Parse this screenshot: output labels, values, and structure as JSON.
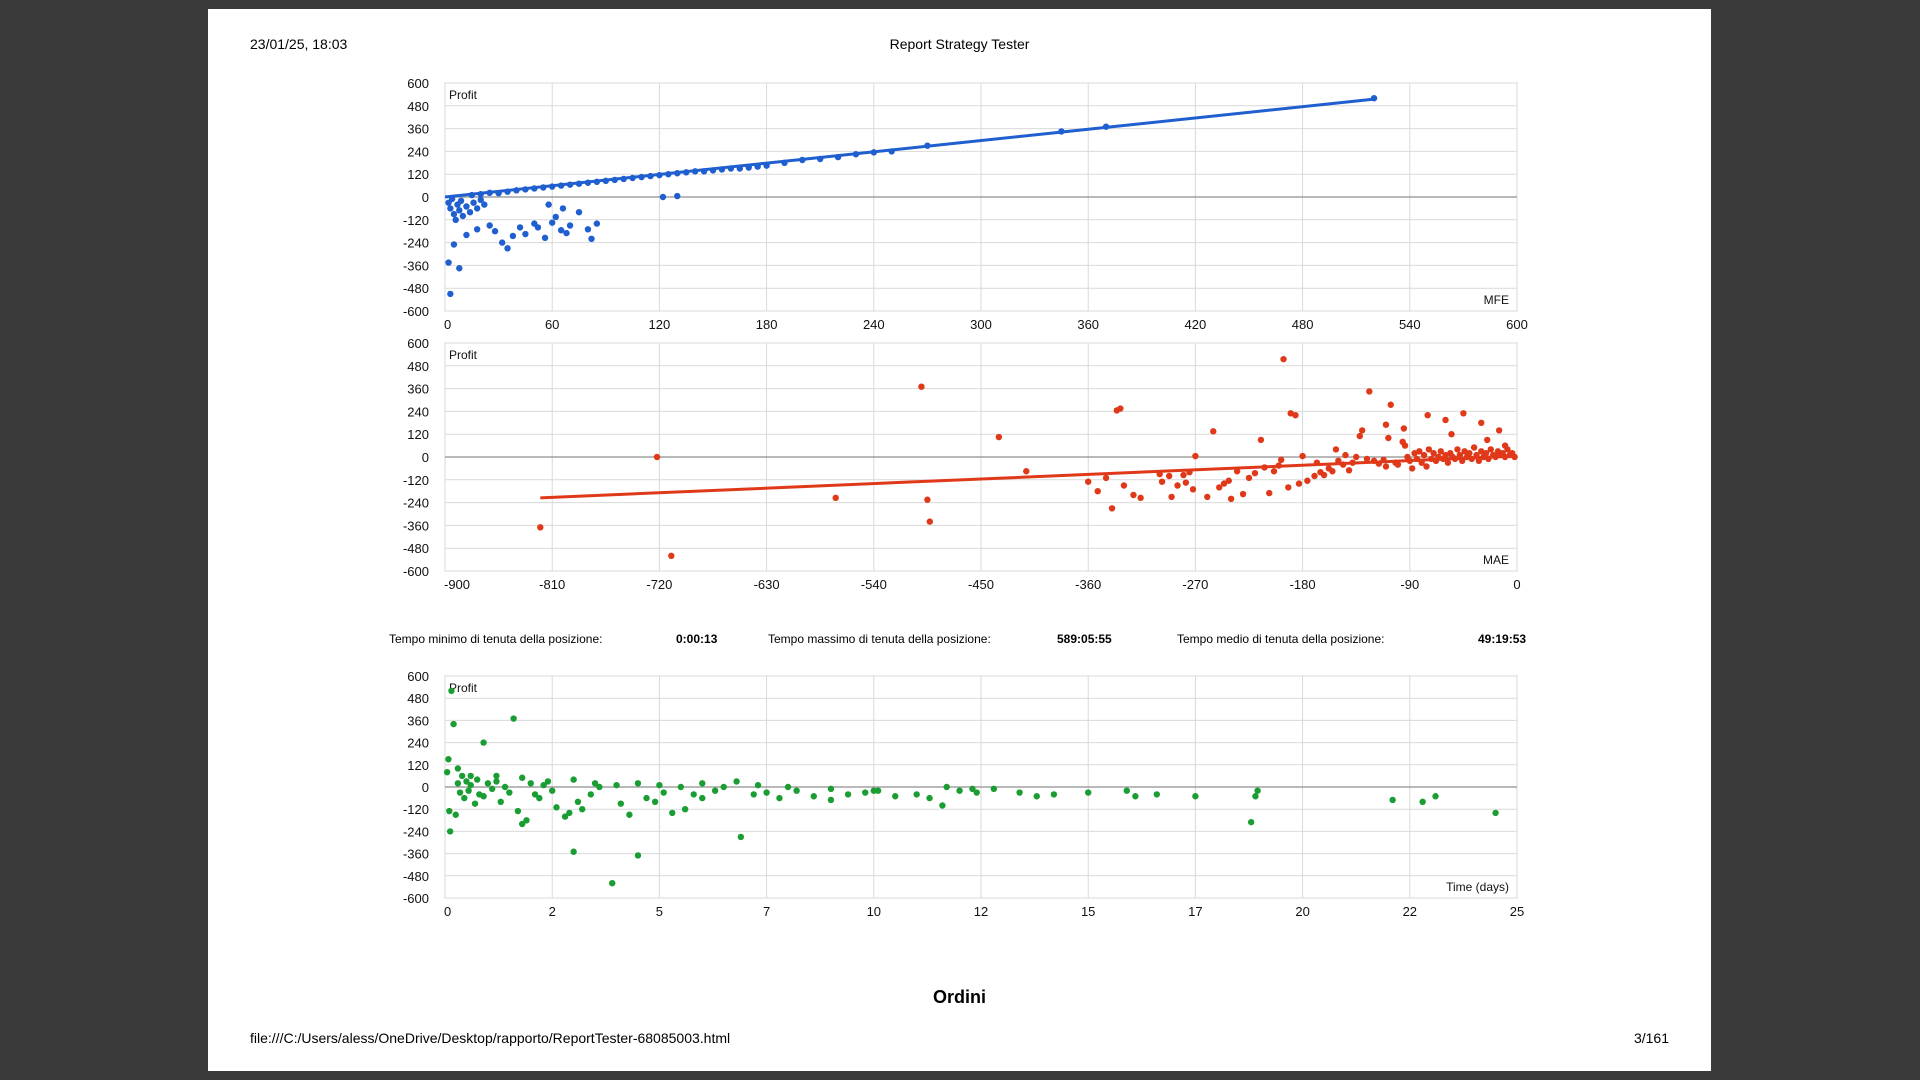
{
  "header": {
    "date": "23/01/25, 18:03",
    "title": "Report Strategy Tester"
  },
  "footer": {
    "url": "file:///C:/Users/aless/OneDrive/Desktop/rapporto/ReportTester-68085003.html",
    "page": "3/161"
  },
  "stats": {
    "min_label": "Tempo minimo di tenuta della posizione:",
    "min_value": "0:00:13",
    "max_label": "Tempo massimo di tenuta della posizione:",
    "max_value": "589:05:55",
    "avg_label": "Tempo medio di tenuta della posizione:",
    "avg_value": "49:19:53"
  },
  "section_title": "Ordini",
  "chart_data": [
    {
      "type": "scatter",
      "ylabel": "Profit",
      "xlabel": "MFE",
      "xlim": [
        0,
        600
      ],
      "ylim": [
        -600,
        600
      ],
      "x_ticks": [
        "0",
        "60",
        "120",
        "180",
        "240",
        "300",
        "360",
        "420",
        "480",
        "540",
        "600"
      ],
      "y_ticks": [
        "600",
        "480",
        "360",
        "240",
        "120",
        "0",
        "-120",
        "-240",
        "-360",
        "-480",
        "-600"
      ],
      "color": "#1f5fcf",
      "trendline": [
        [
          0,
          0
        ],
        [
          520,
          515
        ]
      ],
      "points": [
        [
          2,
          -30
        ],
        [
          3,
          -60
        ],
        [
          4,
          -10
        ],
        [
          5,
          -90
        ],
        [
          6,
          -120
        ],
        [
          7,
          -40
        ],
        [
          8,
          -70
        ],
        [
          9,
          -20
        ],
        [
          10,
          -100
        ],
        [
          12,
          -50
        ],
        [
          14,
          -80
        ],
        [
          16,
          -30
        ],
        [
          18,
          -60
        ],
        [
          20,
          -15
        ],
        [
          22,
          -40
        ],
        [
          3,
          -510
        ],
        [
          2,
          -345
        ],
        [
          8,
          -375
        ],
        [
          5,
          -250
        ],
        [
          12,
          -200
        ],
        [
          18,
          -170
        ],
        [
          25,
          -150
        ],
        [
          28,
          -180
        ],
        [
          32,
          -240
        ],
        [
          35,
          -270
        ],
        [
          38,
          -205
        ],
        [
          42,
          -160
        ],
        [
          45,
          -195
        ],
        [
          50,
          -140
        ],
        [
          52,
          -160
        ],
        [
          56,
          -215
        ],
        [
          60,
          -135
        ],
        [
          62,
          -105
        ],
        [
          65,
          -175
        ],
        [
          68,
          -190
        ],
        [
          70,
          -150
        ],
        [
          75,
          -80
        ],
        [
          80,
          -170
        ],
        [
          82,
          -220
        ],
        [
          85,
          -140
        ],
        [
          58,
          -40
        ],
        [
          66,
          -60
        ],
        [
          122,
          0
        ],
        [
          130,
          5
        ],
        [
          30,
          20
        ],
        [
          40,
          35
        ],
        [
          50,
          45
        ],
        [
          60,
          55
        ],
        [
          70,
          65
        ],
        [
          80,
          75
        ],
        [
          90,
          85
        ],
        [
          100,
          95
        ],
        [
          110,
          105
        ],
        [
          120,
          115
        ],
        [
          130,
          125
        ],
        [
          140,
          135
        ],
        [
          150,
          140
        ],
        [
          160,
          150
        ],
        [
          170,
          155
        ],
        [
          180,
          165
        ],
        [
          200,
          195
        ],
        [
          210,
          200
        ],
        [
          220,
          210
        ],
        [
          230,
          225
        ],
        [
          240,
          235
        ],
        [
          250,
          240
        ],
        [
          270,
          270
        ],
        [
          345,
          345
        ],
        [
          370,
          370
        ],
        [
          520,
          520
        ],
        [
          15,
          10
        ],
        [
          20,
          15
        ],
        [
          25,
          22
        ],
        [
          35,
          28
        ],
        [
          45,
          40
        ],
        [
          55,
          50
        ],
        [
          65,
          60
        ],
        [
          75,
          70
        ],
        [
          85,
          80
        ],
        [
          95,
          90
        ],
        [
          105,
          100
        ],
        [
          115,
          110
        ],
        [
          125,
          120
        ],
        [
          135,
          130
        ],
        [
          145,
          135
        ],
        [
          155,
          145
        ],
        [
          165,
          150
        ],
        [
          175,
          160
        ],
        [
          190,
          180
        ]
      ]
    },
    {
      "type": "scatter",
      "ylabel": "Profit",
      "xlabel": "MAE",
      "xlim": [
        -900,
        0
      ],
      "ylim": [
        -600,
        600
      ],
      "x_ticks": [
        "-900",
        "-810",
        "-720",
        "-630",
        "-540",
        "-450",
        "-360",
        "-270",
        "-180",
        "-90",
        "0"
      ],
      "y_ticks": [
        "600",
        "480",
        "360",
        "240",
        "120",
        "0",
        "-120",
        "-240",
        "-360",
        "-480",
        "-600"
      ],
      "color": "#e0391a",
      "trendline": [
        [
          -820,
          -215
        ],
        [
          0,
          5
        ]
      ],
      "points": [
        [
          -820,
          -370
        ],
        [
          -722,
          0
        ],
        [
          -710,
          -520
        ],
        [
          -572,
          -215
        ],
        [
          -500,
          370
        ],
        [
          -495,
          -225
        ],
        [
          -493,
          -340
        ],
        [
          -435,
          105
        ],
        [
          -412,
          -75
        ],
        [
          -360,
          -130
        ],
        [
          -352,
          -180
        ],
        [
          -345,
          -110
        ],
        [
          -340,
          -270
        ],
        [
          -336,
          245
        ],
        [
          -333,
          255
        ],
        [
          -330,
          -150
        ],
        [
          -322,
          -200
        ],
        [
          -316,
          -215
        ],
        [
          -300,
          -90
        ],
        [
          -298,
          -130
        ],
        [
          -292,
          -100
        ],
        [
          -290,
          -210
        ],
        [
          -285,
          -150
        ],
        [
          -280,
          -95
        ],
        [
          -278,
          -135
        ],
        [
          -275,
          -80
        ],
        [
          -272,
          -170
        ],
        [
          -270,
          5
        ],
        [
          -260,
          -210
        ],
        [
          -255,
          135
        ],
        [
          -250,
          -160
        ],
        [
          -246,
          -140
        ],
        [
          -242,
          -125
        ],
        [
          -240,
          -220
        ],
        [
          -235,
          -75
        ],
        [
          -230,
          -195
        ],
        [
          -225,
          -110
        ],
        [
          -220,
          -85
        ],
        [
          -215,
          90
        ],
        [
          -212,
          -55
        ],
        [
          -208,
          -190
        ],
        [
          -204,
          -75
        ],
        [
          -200,
          -45
        ],
        [
          -198,
          -15
        ],
        [
          -196,
          515
        ],
        [
          -192,
          -160
        ],
        [
          -190,
          230
        ],
        [
          -186,
          220
        ],
        [
          -183,
          -140
        ],
        [
          -180,
          5
        ],
        [
          -176,
          -125
        ],
        [
          -170,
          -100
        ],
        [
          -168,
          -30
        ],
        [
          -165,
          -80
        ],
        [
          -162,
          -95
        ],
        [
          -158,
          -60
        ],
        [
          -155,
          -75
        ],
        [
          -152,
          40
        ],
        [
          -150,
          -20
        ],
        [
          -146,
          -40
        ],
        [
          -144,
          10
        ],
        [
          -141,
          -70
        ],
        [
          -138,
          -30
        ],
        [
          -135,
          0
        ],
        [
          -132,
          110
        ],
        [
          -130,
          140
        ],
        [
          -126,
          -10
        ],
        [
          -124,
          345
        ],
        [
          -120,
          -20
        ],
        [
          -116,
          -35
        ],
        [
          -112,
          -15
        ],
        [
          -110,
          -50
        ],
        [
          -108,
          100
        ],
        [
          -106,
          275
        ],
        [
          -102,
          -30
        ],
        [
          -100,
          -40
        ],
        [
          -96,
          80
        ],
        [
          -94,
          60
        ],
        [
          -92,
          0
        ],
        [
          -90,
          -20
        ],
        [
          -88,
          -60
        ],
        [
          -86,
          20
        ],
        [
          -84,
          -10
        ],
        [
          -82,
          30
        ],
        [
          -80,
          -30
        ],
        [
          -78,
          10
        ],
        [
          -76,
          -50
        ],
        [
          -74,
          40
        ],
        [
          -72,
          -10
        ],
        [
          -70,
          20
        ],
        [
          -68,
          -20
        ],
        [
          -66,
          0
        ],
        [
          -64,
          30
        ],
        [
          -62,
          -10
        ],
        [
          -60,
          10
        ],
        [
          -58,
          -30
        ],
        [
          -56,
          20
        ],
        [
          -54,
          0
        ],
        [
          -52,
          -10
        ],
        [
          -50,
          40
        ],
        [
          -48,
          10
        ],
        [
          -46,
          -20
        ],
        [
          -44,
          30
        ],
        [
          -42,
          0
        ],
        [
          -40,
          20
        ],
        [
          -38,
          -10
        ],
        [
          -36,
          50
        ],
        [
          -34,
          10
        ],
        [
          -32,
          -20
        ],
        [
          -30,
          30
        ],
        [
          -28,
          0
        ],
        [
          -26,
          20
        ],
        [
          -24,
          -10
        ],
        [
          -22,
          40
        ],
        [
          -20,
          10
        ],
        [
          -18,
          0
        ],
        [
          -16,
          30
        ],
        [
          -14,
          10
        ],
        [
          -12,
          20
        ],
        [
          -10,
          0
        ],
        [
          -8,
          40
        ],
        [
          -6,
          10
        ],
        [
          -4,
          20
        ],
        [
          -2,
          0
        ],
        [
          -110,
          170
        ],
        [
          -75,
          220
        ],
        [
          -60,
          195
        ],
        [
          -45,
          230
        ],
        [
          -30,
          180
        ],
        [
          -15,
          140
        ],
        [
          -95,
          150
        ],
        [
          -55,
          120
        ],
        [
          -25,
          90
        ],
        [
          -10,
          60
        ]
      ]
    },
    {
      "type": "scatter",
      "ylabel": "Profit",
      "xlabel": "Time (days)",
      "xlim": [
        0,
        25
      ],
      "ylim": [
        -600,
        600
      ],
      "x_ticks": [
        "0",
        "2",
        "5",
        "7",
        "10",
        "12",
        "15",
        "17",
        "20",
        "22",
        "25"
      ],
      "y_ticks": [
        "600",
        "480",
        "360",
        "240",
        "120",
        "0",
        "-120",
        "-240",
        "-360",
        "-480",
        "-600"
      ],
      "color": "#1a9e34",
      "points": [
        [
          0.05,
          80
        ],
        [
          0.08,
          150
        ],
        [
          0.1,
          -130
        ],
        [
          0.12,
          -240
        ],
        [
          0.15,
          520
        ],
        [
          0.2,
          340
        ],
        [
          0.25,
          -150
        ],
        [
          0.3,
          20
        ],
        [
          0.35,
          -30
        ],
        [
          0.4,
          60
        ],
        [
          0.45,
          -60
        ],
        [
          0.5,
          30
        ],
        [
          0.55,
          -20
        ],
        [
          0.6,
          10
        ],
        [
          0.7,
          -90
        ],
        [
          0.75,
          40
        ],
        [
          0.8,
          -40
        ],
        [
          0.9,
          240
        ],
        [
          1.0,
          20
        ],
        [
          1.1,
          -10
        ],
        [
          1.2,
          30
        ],
        [
          1.3,
          -80
        ],
        [
          1.4,
          0
        ],
        [
          1.5,
          -30
        ],
        [
          1.6,
          370
        ],
        [
          1.7,
          -130
        ],
        [
          1.8,
          -200
        ],
        [
          1.9,
          -180
        ],
        [
          2.0,
          20
        ],
        [
          2.1,
          -40
        ],
        [
          2.2,
          -60
        ],
        [
          2.3,
          10
        ],
        [
          2.5,
          -20
        ],
        [
          2.6,
          -110
        ],
        [
          2.8,
          -160
        ],
        [
          2.9,
          -140
        ],
        [
          3.0,
          -350
        ],
        [
          3.1,
          -80
        ],
        [
          3.2,
          -120
        ],
        [
          3.4,
          -40
        ],
        [
          3.6,
          0
        ],
        [
          3.9,
          -520
        ],
        [
          4.1,
          -90
        ],
        [
          4.3,
          -150
        ],
        [
          4.5,
          -370
        ],
        [
          4.7,
          -60
        ],
        [
          4.9,
          -80
        ],
        [
          5.1,
          -30
        ],
        [
          5.3,
          -140
        ],
        [
          5.6,
          -120
        ],
        [
          5.8,
          -40
        ],
        [
          6.0,
          -60
        ],
        [
          6.3,
          -20
        ],
        [
          6.5,
          0
        ],
        [
          6.9,
          -270
        ],
        [
          7.2,
          -40
        ],
        [
          7.5,
          -30
        ],
        [
          7.8,
          -60
        ],
        [
          8.2,
          -20
        ],
        [
          8.6,
          -50
        ],
        [
          9.0,
          -70
        ],
        [
          9.4,
          -40
        ],
        [
          9.8,
          -30
        ],
        [
          10.1,
          -20
        ],
        [
          10.5,
          -50
        ],
        [
          11.0,
          -40
        ],
        [
          11.3,
          -60
        ],
        [
          11.6,
          -100
        ],
        [
          12.0,
          -20
        ],
        [
          12.4,
          -30
        ],
        [
          12.8,
          -10
        ],
        [
          13.4,
          -30
        ],
        [
          13.8,
          -50
        ],
        [
          14.2,
          -40
        ],
        [
          15.0,
          -30
        ],
        [
          15.9,
          -20
        ],
        [
          16.1,
          -50
        ],
        [
          16.6,
          -40
        ],
        [
          17.5,
          -50
        ],
        [
          18.8,
          -190
        ],
        [
          18.9,
          -50
        ],
        [
          18.95,
          -20
        ],
        [
          22.1,
          -70
        ],
        [
          22.8,
          -80
        ],
        [
          23.1,
          -50
        ],
        [
          24.5,
          -140
        ],
        [
          0.3,
          100
        ],
        [
          0.6,
          60
        ],
        [
          0.9,
          -50
        ],
        [
          1.2,
          60
        ],
        [
          1.8,
          50
        ],
        [
          2.4,
          30
        ],
        [
          3.0,
          40
        ],
        [
          3.5,
          20
        ],
        [
          4.0,
          10
        ],
        [
          4.5,
          20
        ],
        [
          5.0,
          10
        ],
        [
          5.5,
          0
        ],
        [
          6.0,
          20
        ],
        [
          6.8,
          30
        ],
        [
          7.3,
          10
        ],
        [
          8.0,
          0
        ],
        [
          9.0,
          -10
        ],
        [
          10.0,
          -20
        ],
        [
          11.7,
          0
        ],
        [
          12.3,
          -10
        ]
      ]
    }
  ]
}
